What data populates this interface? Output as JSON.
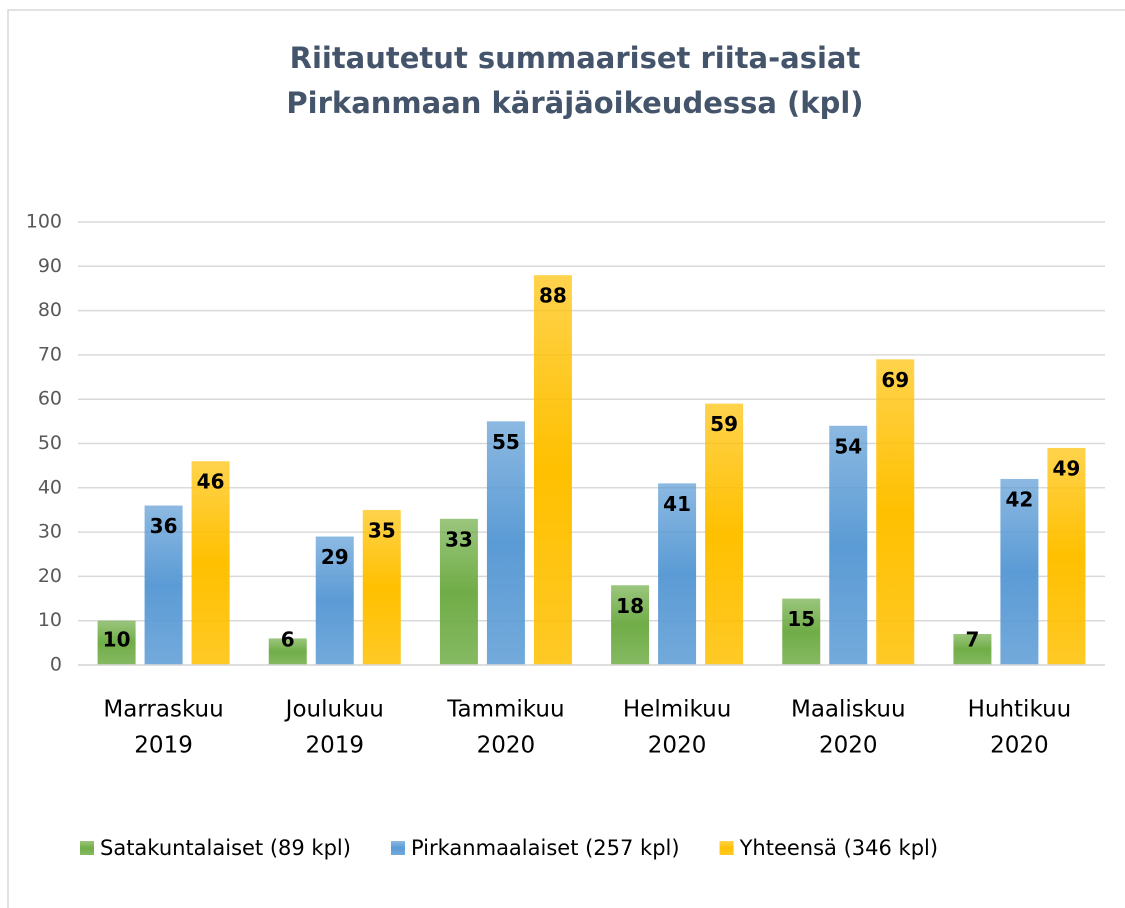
{
  "chart_data": {
    "type": "bar",
    "title": [
      "Riitautetut summaariset riita-asiat",
      "Pirkanmaan käräjäoikeudessa (kpl)"
    ],
    "categories": [
      [
        "Marraskuu",
        "2019"
      ],
      [
        "Joulukuu",
        "2019"
      ],
      [
        "Tammikuu",
        "2020"
      ],
      [
        "Helmikuu",
        "2020"
      ],
      [
        "Maaliskuu",
        "2020"
      ],
      [
        "Huhtikuu",
        "2020"
      ]
    ],
    "series": [
      {
        "name": "Satakuntalaiset (89 kpl)",
        "color": "#70ad47",
        "values": [
          10,
          6,
          33,
          18,
          15,
          7
        ]
      },
      {
        "name": "Pirkanmaalaiset (257 kpl)",
        "color": "#5b9bd5",
        "values": [
          36,
          29,
          55,
          41,
          54,
          42
        ]
      },
      {
        "name": "Yhteensä (346 kpl)",
        "color": "#ffc000",
        "values": [
          46,
          35,
          88,
          59,
          69,
          49
        ]
      }
    ],
    "ylim": [
      0,
      100
    ],
    "yticks": [
      0,
      10,
      20,
      30,
      40,
      50,
      60,
      70,
      80,
      90,
      100
    ],
    "grid": true,
    "legend": "bottom"
  }
}
